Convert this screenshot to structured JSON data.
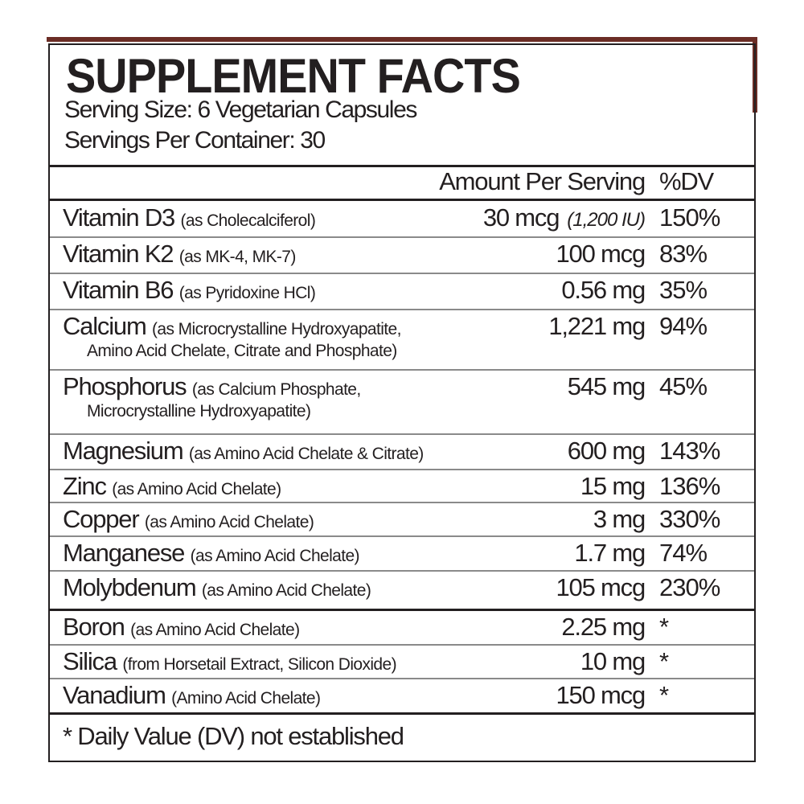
{
  "label": {
    "title": "SUPPLEMENT FACTS",
    "serving_size": "Serving Size: 6 Vegetarian Capsules",
    "servings_per_container": "Servings Per Container: 30",
    "header_amount": "Amount Per Serving",
    "header_dv": "%DV",
    "accent_color": "#6b2d25",
    "rows": [
      {
        "name": "Vitamin D3",
        "source": "(as Cholecalciferol)",
        "source2": "",
        "amount": "30 mcg",
        "alt": "(1,200 IU)",
        "dv": "150%"
      },
      {
        "name": "Vitamin K2",
        "source": "(as MK-4, MK-7)",
        "source2": "",
        "amount": "100 mcg",
        "alt": "",
        "dv": "83%"
      },
      {
        "name": "Vitamin B6",
        "source": "(as Pyridoxine HCl)",
        "source2": "",
        "amount": "0.56 mg",
        "alt": "",
        "dv": "35%"
      },
      {
        "name": "Calcium",
        "source": "(as Microcrystalline Hydroxyapatite,",
        "source2": "Amino Acid Chelate, Citrate and Phosphate)",
        "amount": "1,221 mg",
        "alt": "",
        "dv": "94%"
      },
      {
        "name": "Phosphorus",
        "source": "(as Calcium Phosphate,",
        "source2": "Microcrystalline Hydroxyapatite)",
        "amount": "545 mg",
        "alt": "",
        "dv": "45%"
      },
      {
        "name": "Magnesium",
        "source": "(as Amino Acid Chelate & Citrate)",
        "source2": "",
        "amount": "600 mg",
        "alt": "",
        "dv": "143%"
      },
      {
        "name": "Zinc",
        "source": "(as Amino Acid Chelate)",
        "source2": "",
        "amount": "15 mg",
        "alt": "",
        "dv": "136%"
      },
      {
        "name": "Copper",
        "source": "(as Amino Acid Chelate)",
        "source2": "",
        "amount": "3 mg",
        "alt": "",
        "dv": "330%"
      },
      {
        "name": "Manganese",
        "source": "(as Amino Acid Chelate)",
        "source2": "",
        "amount": "1.7 mg",
        "alt": "",
        "dv": "74%"
      },
      {
        "name": "Molybdenum",
        "source": "(as Amino Acid Chelate)",
        "source2": "",
        "amount": "105 mcg",
        "alt": "",
        "dv": "230%"
      },
      {
        "name": "Boron",
        "source": "(as Amino Acid Chelate)",
        "source2": "",
        "amount": "2.25 mg",
        "alt": "",
        "dv": "*"
      },
      {
        "name": "Silica",
        "source": "(from Horsetail Extract, Silicon Dioxide)",
        "source2": "",
        "amount": "10 mg",
        "alt": "",
        "dv": "*"
      },
      {
        "name": "Vanadium",
        "source": "(Amino Acid Chelate)",
        "source2": "",
        "amount": "150 mcg",
        "alt": "",
        "dv": "*"
      }
    ],
    "footnote": "* Daily Value (DV) not established"
  }
}
